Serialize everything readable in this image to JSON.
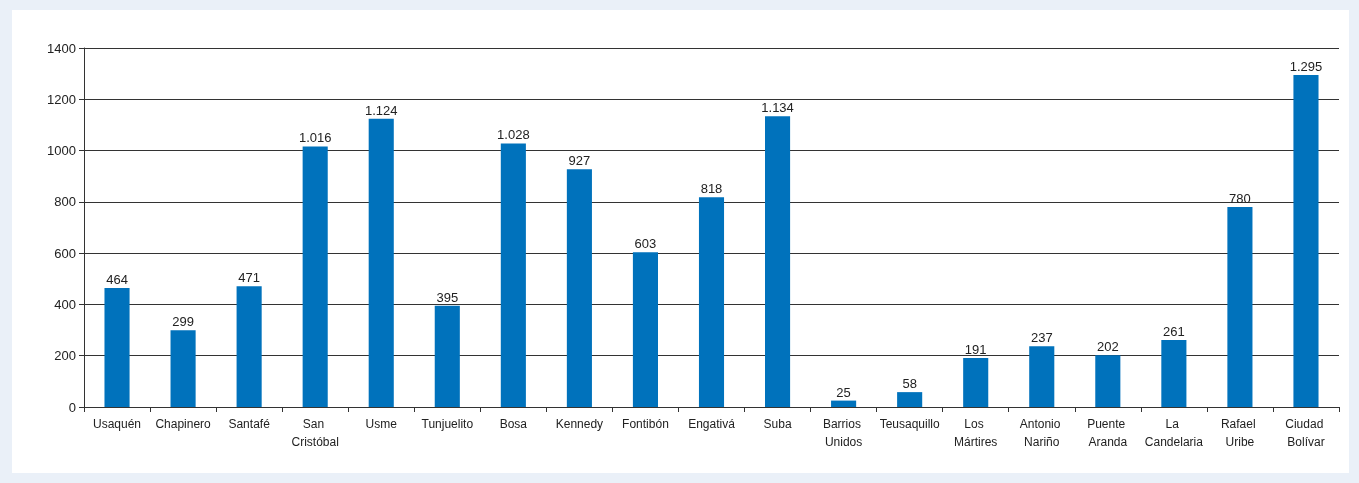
{
  "chart_data": {
    "type": "bar",
    "categories": [
      "Usaquén",
      "Chapinero",
      "Santafé",
      "San Cristóbal",
      "Usme",
      "Tunjuelito",
      "Bosa",
      "Kennedy",
      "Fontibón",
      "Engativá",
      "Suba",
      "Barrios Unidos",
      "Teusaquillo",
      "Los Mártires",
      "Antonio Nariño",
      "Puente Aranda",
      "La Candelaria",
      "Rafael Uribe",
      "Ciudad Bolívar"
    ],
    "values": [
      464,
      299,
      471,
      1016,
      1124,
      395,
      1028,
      927,
      603,
      818,
      1134,
      25,
      58,
      191,
      237,
      202,
      261,
      780,
      1295
    ],
    "value_labels": [
      "464",
      "299",
      "471",
      "1.016",
      "1.124",
      "395",
      "1.028",
      "927",
      "603",
      "818",
      "1.134",
      "25",
      "58",
      "191",
      "237",
      "202",
      "261",
      "780",
      "1.295"
    ],
    "color": "#0072bc",
    "ylim": [
      0,
      1400
    ],
    "yticks": [
      0,
      200,
      400,
      600,
      800,
      1000,
      1200,
      1400
    ],
    "grid": "y"
  }
}
